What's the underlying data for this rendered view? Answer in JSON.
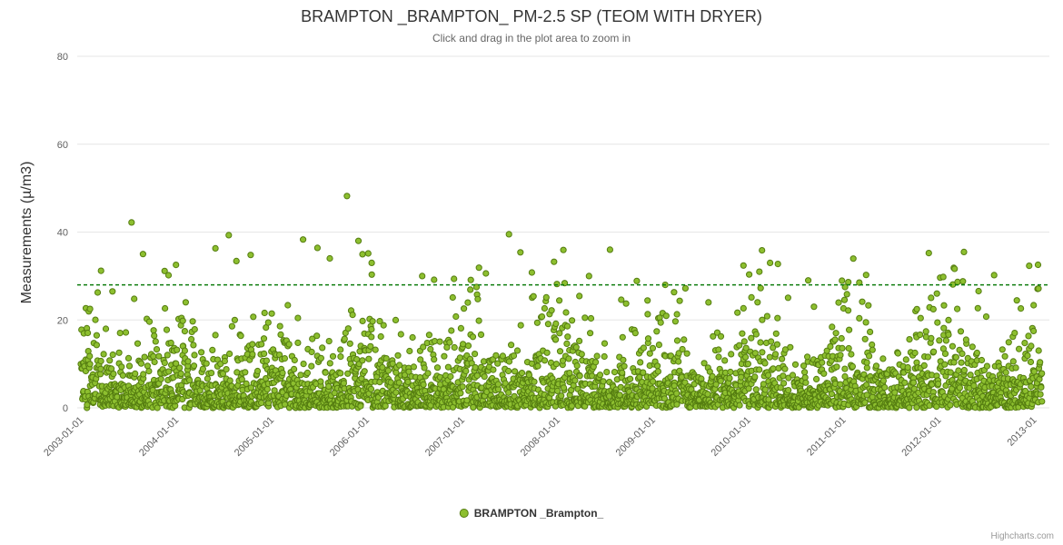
{
  "page": {
    "credits": "Highcharts.com"
  },
  "chart_data": {
    "type": "scatter",
    "title": "BRAMPTON _BRAMPTON_ PM-2.5 SP (TEOM WITH DRYER)",
    "subtitle": "Click and drag in the plot area to zoom in",
    "ylabel": "Measurements (µ/m3)",
    "xlabel": "",
    "ylim": [
      0,
      80
    ],
    "yticks": [
      0,
      20,
      40,
      60,
      80
    ],
    "grid": true,
    "grid_color": "#e6e6e6",
    "axis_text_color": "#606060",
    "x_axis": {
      "tick_years": [
        2003,
        2004,
        2005,
        2006,
        2007,
        2008,
        2009,
        2010,
        2011,
        2012,
        2013
      ],
      "tick_labels": [
        "2003-01-01",
        "2004-01-01",
        "2005-01-01",
        "2006-01-01",
        "2007-01-01",
        "2008-01-01",
        "2009-01-01",
        "2010-01-01",
        "2011-01-01",
        "2012-01-01",
        "2013-01"
      ],
      "range_years": [
        2002.93,
        2013.13
      ]
    },
    "threshold_line": {
      "value": 28,
      "color": "#0c7c0c",
      "dash": "4,3"
    },
    "legend": {
      "position": "bottom-center",
      "items": [
        {
          "label": "BRAMPTON _Brampton_",
          "marker_color": "#8dbf2f"
        }
      ]
    },
    "series": [
      {
        "name": "BRAMPTON _Brampton_",
        "marker": {
          "fill": "#8dbf2f",
          "stroke": "#557d11",
          "radius": 3.1
        },
        "approx_point_count": 3600,
        "y_typical_band": [
          0,
          15
        ],
        "y_max_observed": 48,
        "synthesis": {
          "seed": 20130101,
          "count": 3200,
          "mean_base": 6.0,
          "seasonal_amplitude": 0.35
        },
        "outliers": [
          [
            2003.18,
            31.2
          ],
          [
            2003.3,
            26.5
          ],
          [
            2003.5,
            42.2
          ],
          [
            2003.62,
            35.0
          ],
          [
            2004.38,
            36.3
          ],
          [
            2004.52,
            39.3
          ],
          [
            2004.6,
            33.4
          ],
          [
            2004.75,
            34.8
          ],
          [
            2005.3,
            38.3
          ],
          [
            2005.45,
            36.4
          ],
          [
            2005.58,
            34.0
          ],
          [
            2005.76,
            48.2
          ],
          [
            2005.88,
            38.0
          ],
          [
            2006.02,
            33.0
          ],
          [
            2006.55,
            30.0
          ],
          [
            2007.12,
            27.5
          ],
          [
            2007.46,
            39.5
          ],
          [
            2007.58,
            35.4
          ],
          [
            2007.7,
            30.8
          ],
          [
            2008.3,
            30.0
          ],
          [
            2008.52,
            36.0
          ],
          [
            2009.1,
            28.0
          ],
          [
            2009.92,
            32.4
          ],
          [
            2010.6,
            29.0
          ],
          [
            2011.02,
            28.6
          ],
          [
            2011.95,
            26.0
          ],
          [
            2012.55,
            30.2
          ]
        ]
      }
    ]
  }
}
